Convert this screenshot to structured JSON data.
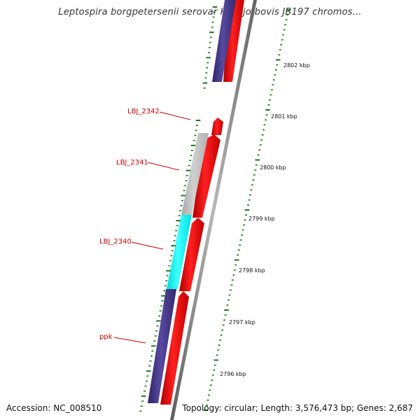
{
  "title": "Leptospira borgpetersenii serovar Hardjo-bovis JB197 chromos...",
  "accession": "Accession: NC_008510",
  "topology": "Topology: circular; Length: 3,576,473 bp; Genes: 2,687",
  "gene_labels": [
    "LBJ_2342",
    "LBJ_2341",
    "LBJ_2340",
    "ppk"
  ],
  "kbp_labels": [
    "2802 kbp",
    "2801 kbp",
    "2800 kbp",
    "2799 kbp",
    "2798 kbp",
    "2797 kbp",
    "2796 kbp"
  ],
  "colors": {
    "forward_cds": "#ff0000",
    "reverse_cds_blue": "#4a3d8f",
    "reverse_cds_grey": "#c0c0c0",
    "reverse_cds_cyan": "#00ffff",
    "tick_green": "#1a7a1a",
    "backbone": "#808080"
  }
}
